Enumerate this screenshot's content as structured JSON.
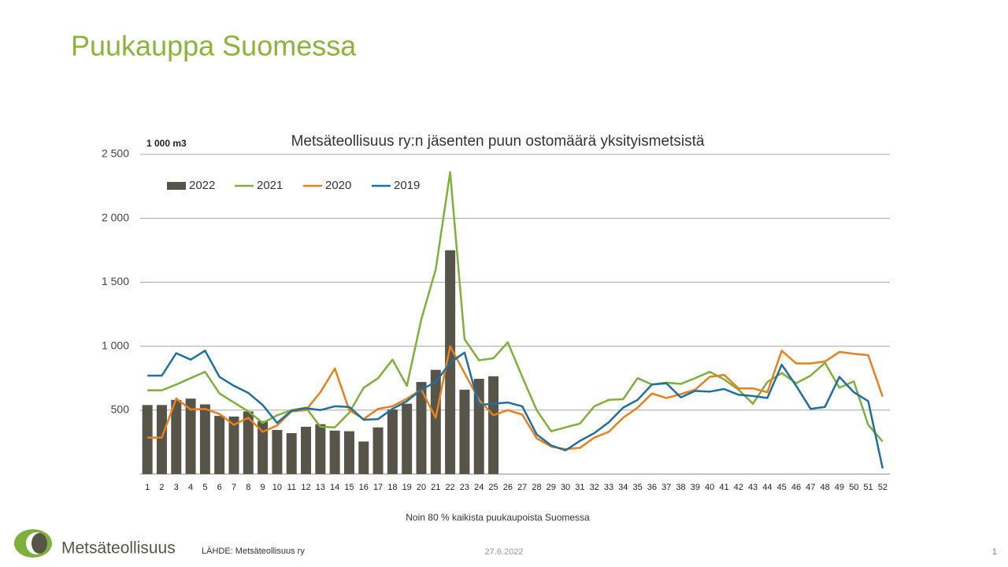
{
  "slide": {
    "title": "Puukauppa Suomessa",
    "logo_text": "Metsäteollisuus",
    "source": "LÄHDE:  Metsäteollisuus ry",
    "date": "27.6.2022",
    "page_number": "1"
  },
  "chart_data": {
    "type": "combo",
    "title": "Metsäteollisuus ry:n jäsenten puun ostomäärä yksityismetsistä",
    "y_unit": "1 000 m3",
    "x_note": "Noin 80 % kaikista puukaupoista Suomessa",
    "categories": [
      "1",
      "2",
      "3",
      "4",
      "5",
      "6",
      "7",
      "8",
      "9",
      "10",
      "11",
      "12",
      "13",
      "14",
      "15",
      "16",
      "17",
      "18",
      "19",
      "20",
      "21",
      "22",
      "23",
      "24",
      "25",
      "26",
      "27",
      "28",
      "29",
      "30",
      "31",
      "32",
      "33",
      "34",
      "35",
      "36",
      "37",
      "38",
      "39",
      "40",
      "41",
      "42",
      "43",
      "44",
      "45",
      "46",
      "47",
      "48",
      "49",
      "50",
      "51",
      "52"
    ],
    "ylim": [
      0,
      2500
    ],
    "yticks": [
      500,
      {
        "value": 1000,
        "label": "1 000"
      },
      {
        "value": 1500,
        "label": "1 500"
      },
      {
        "value": 2000,
        "label": "2 000"
      },
      {
        "value": 2500,
        "label": "2 500"
      }
    ],
    "grid": true,
    "legend": "top-left",
    "series": [
      {
        "name": "2022",
        "type": "bar",
        "color": "#57544a",
        "values": [
          540,
          540,
          580,
          590,
          545,
          455,
          450,
          490,
          415,
          345,
          320,
          370,
          390,
          340,
          335,
          255,
          365,
          505,
          550,
          720,
          815,
          1750,
          660,
          745,
          765,
          null,
          null,
          null,
          null,
          null,
          null,
          null,
          null,
          null,
          null,
          null,
          null,
          null,
          null,
          null,
          null,
          null,
          null,
          null,
          null,
          null,
          null,
          null,
          null,
          null,
          null,
          null
        ]
      },
      {
        "name": "2021",
        "type": "line",
        "color": "#7fb03b",
        "values": [
          655,
          655,
          700,
          750,
          800,
          630,
          560,
          490,
          400,
          460,
          500,
          520,
          370,
          365,
          480,
          675,
          750,
          895,
          690,
          1210,
          1600,
          2360,
          1055,
          890,
          905,
          1030,
          760,
          500,
          335,
          365,
          395,
          530,
          580,
          585,
          750,
          700,
          715,
          705,
          750,
          800,
          740,
          660,
          550,
          720,
          790,
          710,
          770,
          870,
          675,
          725,
          385,
          255
        ]
      },
      {
        "name": "2020",
        "type": "line",
        "color": "#e8801c",
        "values": [
          285,
          285,
          590,
          505,
          510,
          470,
          385,
          440,
          330,
          380,
          490,
          500,
          640,
          825,
          500,
          430,
          510,
          530,
          590,
          660,
          440,
          1000,
          790,
          580,
          460,
          500,
          465,
          280,
          215,
          195,
          205,
          285,
          330,
          440,
          520,
          630,
          595,
          625,
          660,
          760,
          775,
          670,
          670,
          640,
          965,
          865,
          865,
          880,
          955,
          940,
          930,
          605
        ]
      },
      {
        "name": "2019",
        "type": "line",
        "color": "#1f6f9f",
        "values": [
          770,
          770,
          945,
          895,
          965,
          760,
          690,
          635,
          540,
          400,
          495,
          515,
          500,
          530,
          525,
          425,
          430,
          510,
          570,
          660,
          720,
          870,
          950,
          540,
          550,
          560,
          530,
          310,
          225,
          185,
          260,
          320,
          405,
          520,
          580,
          700,
          710,
          600,
          650,
          645,
          665,
          620,
          610,
          595,
          855,
          690,
          510,
          525,
          760,
          640,
          570,
          45
        ]
      }
    ]
  }
}
